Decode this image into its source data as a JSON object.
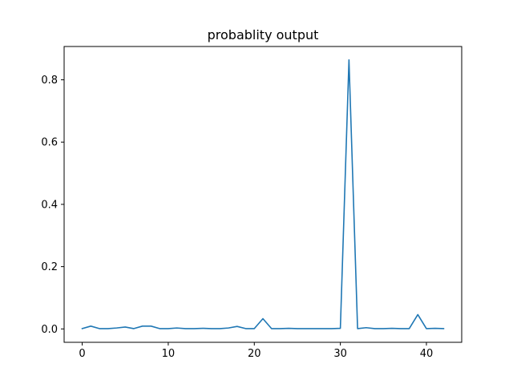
{
  "chart_data": {
    "type": "line",
    "title": "probablity output",
    "xlabel": "",
    "ylabel": "",
    "xlim": [
      -2.1,
      44.1
    ],
    "ylim": [
      -0.043,
      0.907
    ],
    "xticks": [
      0,
      10,
      20,
      30,
      40
    ],
    "xtick_labels": [
      "0",
      "10",
      "20",
      "30",
      "40"
    ],
    "yticks": [
      0.0,
      0.2,
      0.4,
      0.6,
      0.8
    ],
    "ytick_labels": [
      "0.0",
      "0.2",
      "0.4",
      "0.6",
      "0.8"
    ],
    "grid": false,
    "legend": "none",
    "series": [
      {
        "color": "#1f77b4",
        "x": [
          0,
          1,
          2,
          3,
          4,
          5,
          6,
          7,
          8,
          9,
          10,
          11,
          12,
          13,
          14,
          15,
          16,
          17,
          18,
          19,
          20,
          21,
          22,
          23,
          24,
          25,
          26,
          27,
          28,
          29,
          30,
          31,
          32,
          33,
          34,
          35,
          36,
          37,
          38,
          39,
          40,
          41,
          42
        ],
        "values": [
          0.001,
          0.009,
          0.001,
          0.001,
          0.003,
          0.006,
          0.001,
          0.009,
          0.009,
          0.001,
          0.001,
          0.003,
          0.001,
          0.001,
          0.002,
          0.001,
          0.001,
          0.003,
          0.008,
          0.001,
          0.001,
          0.033,
          0.001,
          0.001,
          0.002,
          0.001,
          0.001,
          0.001,
          0.001,
          0.001,
          0.002,
          0.864,
          0.001,
          0.004,
          0.001,
          0.001,
          0.002,
          0.001,
          0.001,
          0.046,
          0.001,
          0.002,
          0.001
        ]
      }
    ]
  }
}
